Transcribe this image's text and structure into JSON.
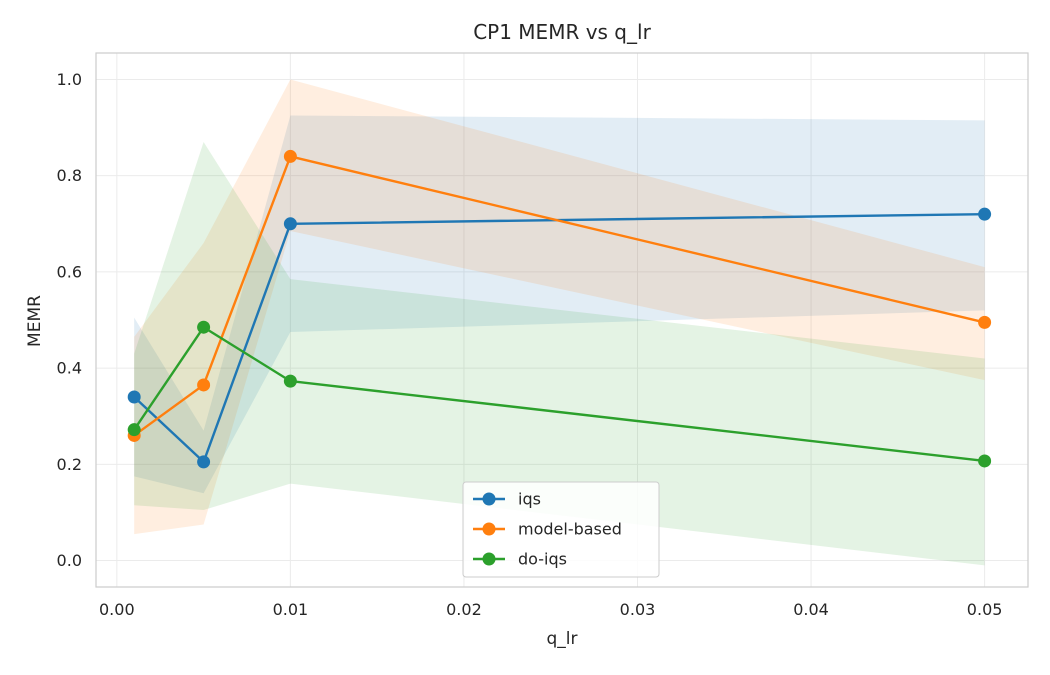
{
  "chart_data": {
    "type": "line",
    "title": "CP1 MEMR vs q_lr",
    "xlabel": "q_lr",
    "ylabel": "MEMR",
    "xlim": [
      -0.0012,
      0.0525
    ],
    "ylim": [
      -0.055,
      1.055
    ],
    "xticks": [
      0.0,
      0.01,
      0.02,
      0.03,
      0.04,
      0.05
    ],
    "xtick_labels": [
      "0.00",
      "0.01",
      "0.02",
      "0.03",
      "0.04",
      "0.05"
    ],
    "yticks": [
      0.0,
      0.2,
      0.4,
      0.6,
      0.8,
      1.0
    ],
    "ytick_labels": [
      "0.0",
      "0.2",
      "0.4",
      "0.6",
      "0.8",
      "1.0"
    ],
    "grid": true,
    "legend_position": "bottom-center",
    "x": [
      0.001,
      0.005,
      0.01,
      0.05
    ],
    "series": [
      {
        "name": "iqs",
        "color": "#1f77b4",
        "values": [
          0.34,
          0.205,
          0.7,
          0.72
        ],
        "lower": [
          0.175,
          0.14,
          0.475,
          0.52
        ],
        "upper": [
          0.505,
          0.27,
          0.925,
          0.915
        ]
      },
      {
        "name": "model-based",
        "color": "#ff7f0e",
        "values": [
          0.26,
          0.365,
          0.84,
          0.495
        ],
        "lower": [
          0.055,
          0.075,
          0.685,
          0.375
        ],
        "upper": [
          0.465,
          0.66,
          1.0,
          0.61
        ]
      },
      {
        "name": "do-iqs",
        "color": "#2ca02c",
        "values": [
          0.272,
          0.485,
          0.373,
          0.207
        ],
        "lower": [
          0.115,
          0.105,
          0.16,
          -0.01
        ],
        "upper": [
          0.43,
          0.87,
          0.585,
          0.42
        ]
      }
    ]
  }
}
